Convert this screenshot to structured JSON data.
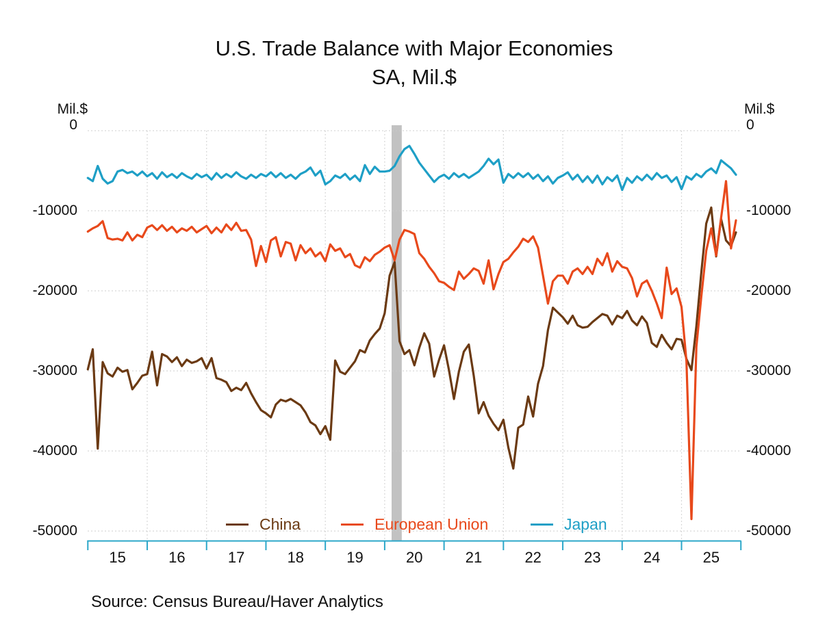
{
  "title": {
    "line1": "U.S. Trade Balance with Major Economies",
    "line2": "SA, Mil.$"
  },
  "unit_label_left": "Mil.$",
  "unit_label_right": "Mil.$",
  "source": "Source:  Census Bureau/Haver Analytics",
  "legend": [
    {
      "label": "China",
      "color": "#6B3A13"
    },
    {
      "label": "European Union",
      "color": "#E8491B"
    },
    {
      "label": "Japan",
      "color": "#1E9FC6"
    }
  ],
  "chart_data": {
    "type": "line",
    "title": "U.S. Trade Balance with Major Economies",
    "subtitle": "SA, Mil.$",
    "ylabel": "Mil.$",
    "xlabel": "",
    "grid": "dotted",
    "legend_position": "bottom-inside",
    "ylim": [
      -50000,
      0
    ],
    "xlim": [
      "2015-01",
      "2026-01"
    ],
    "y_ticks": [
      0,
      -10000,
      -20000,
      -30000,
      -40000,
      -50000
    ],
    "x_tick_years": [
      2015,
      2016,
      2017,
      2018,
      2019,
      2020,
      2021,
      2022,
      2023,
      2024,
      2025,
      2026
    ],
    "x_tick_labels": [
      "15",
      "16",
      "17",
      "18",
      "19",
      "20",
      "21",
      "22",
      "23",
      "24",
      "25"
    ],
    "recession_band": {
      "from": "2020-02",
      "to": "2020-04",
      "color": "#C2C2C2"
    },
    "axis_color": "#2BA7C9",
    "grid_color": "#CBCBCB",
    "x": [
      "2015-01",
      "2015-02",
      "2015-03",
      "2015-04",
      "2015-05",
      "2015-06",
      "2015-07",
      "2015-08",
      "2015-09",
      "2015-10",
      "2015-11",
      "2015-12",
      "2016-01",
      "2016-02",
      "2016-03",
      "2016-04",
      "2016-05",
      "2016-06",
      "2016-07",
      "2016-08",
      "2016-09",
      "2016-10",
      "2016-11",
      "2016-12",
      "2017-01",
      "2017-02",
      "2017-03",
      "2017-04",
      "2017-05",
      "2017-06",
      "2017-07",
      "2017-08",
      "2017-09",
      "2017-10",
      "2017-11",
      "2017-12",
      "2018-01",
      "2018-02",
      "2018-03",
      "2018-04",
      "2018-05",
      "2018-06",
      "2018-07",
      "2018-08",
      "2018-09",
      "2018-10",
      "2018-11",
      "2018-12",
      "2019-01",
      "2019-02",
      "2019-03",
      "2019-04",
      "2019-05",
      "2019-06",
      "2019-07",
      "2019-08",
      "2019-09",
      "2019-10",
      "2019-11",
      "2019-12",
      "2020-01",
      "2020-02",
      "2020-03",
      "2020-04",
      "2020-05",
      "2020-06",
      "2020-07",
      "2020-08",
      "2020-09",
      "2020-10",
      "2020-11",
      "2020-12",
      "2021-01",
      "2021-02",
      "2021-03",
      "2021-04",
      "2021-05",
      "2021-06",
      "2021-07",
      "2021-08",
      "2021-09",
      "2021-10",
      "2021-11",
      "2021-12",
      "2022-01",
      "2022-02",
      "2022-03",
      "2022-04",
      "2022-05",
      "2022-06",
      "2022-07",
      "2022-08",
      "2022-09",
      "2022-10",
      "2022-11",
      "2022-12",
      "2023-01",
      "2023-02",
      "2023-03",
      "2023-04",
      "2023-05",
      "2023-06",
      "2023-07",
      "2023-08",
      "2023-09",
      "2023-10",
      "2023-11",
      "2023-12",
      "2024-01",
      "2024-02",
      "2024-03",
      "2024-04",
      "2024-05",
      "2024-06",
      "2024-07",
      "2024-08",
      "2024-09",
      "2024-10",
      "2024-11",
      "2024-12",
      "2025-01",
      "2025-02",
      "2025-03",
      "2025-04",
      "2025-05",
      "2025-06",
      "2025-07",
      "2025-08",
      "2025-09",
      "2025-10",
      "2025-11",
      "2025-12"
    ],
    "series": [
      {
        "name": "China",
        "color": "#6B3A13",
        "values": [
          -29800,
          -27300,
          -39700,
          -28900,
          -30300,
          -30700,
          -29600,
          -30100,
          -29900,
          -32300,
          -31500,
          -30600,
          -30400,
          -27600,
          -31800,
          -27900,
          -28200,
          -28900,
          -28300,
          -29400,
          -28600,
          -29000,
          -28800,
          -28400,
          -29700,
          -28400,
          -30900,
          -31100,
          -31400,
          -32500,
          -32100,
          -32400,
          -31500,
          -32800,
          -33900,
          -34900,
          -35300,
          -35800,
          -34200,
          -33600,
          -33800,
          -33500,
          -33900,
          -34300,
          -35200,
          -36400,
          -36800,
          -37900,
          -36900,
          -38600,
          -28700,
          -30100,
          -30400,
          -29600,
          -28800,
          -27400,
          -27700,
          -26200,
          -25400,
          -24700,
          -22800,
          -18100,
          -16400,
          -26300,
          -27900,
          -27400,
          -29300,
          -27100,
          -25300,
          -26600,
          -30700,
          -28600,
          -26800,
          -29900,
          -33500,
          -30100,
          -27600,
          -26700,
          -30600,
          -35300,
          -33900,
          -35600,
          -36600,
          -37400,
          -36100,
          -39600,
          -42200,
          -37100,
          -36700,
          -33200,
          -35700,
          -31600,
          -29400,
          -24900,
          -22100,
          -22700,
          -23300,
          -24100,
          -23100,
          -24300,
          -24600,
          -24500,
          -23900,
          -23400,
          -22900,
          -23100,
          -24200,
          -23100,
          -23400,
          -22500,
          -23700,
          -24300,
          -23200,
          -24000,
          -26500,
          -27000,
          -25500,
          -26500,
          -27300,
          -26000,
          -26100,
          -28500,
          -29900,
          -24400,
          -17700,
          -11600,
          -9600,
          -15700,
          -11000,
          -13700,
          -14400,
          -12700
        ]
      },
      {
        "name": "European Union",
        "color": "#E8491B",
        "values": [
          -12600,
          -12200,
          -11900,
          -11300,
          -13400,
          -13600,
          -13500,
          -13700,
          -12700,
          -13700,
          -13000,
          -13300,
          -12100,
          -11800,
          -12400,
          -11800,
          -12500,
          -12000,
          -12700,
          -12200,
          -12500,
          -12000,
          -12700,
          -12300,
          -11900,
          -12800,
          -12100,
          -12700,
          -11700,
          -12400,
          -11500,
          -12500,
          -12400,
          -13600,
          -16900,
          -14400,
          -16400,
          -13700,
          -13300,
          -15700,
          -13900,
          -14100,
          -16200,
          -14300,
          -15300,
          -14700,
          -15700,
          -15200,
          -16300,
          -14200,
          -15000,
          -14700,
          -15800,
          -15400,
          -16800,
          -17100,
          -15800,
          -16300,
          -15500,
          -15100,
          -14600,
          -14300,
          -16200,
          -13600,
          -12400,
          -12600,
          -12900,
          -15300,
          -16000,
          -17000,
          -17800,
          -18800,
          -19000,
          -19500,
          -19900,
          -17600,
          -18500,
          -17900,
          -17200,
          -17500,
          -19100,
          -16200,
          -19800,
          -17900,
          -16400,
          -16000,
          -15200,
          -14500,
          -13500,
          -13900,
          -13200,
          -14600,
          -18100,
          -21600,
          -18800,
          -18100,
          -18100,
          -19100,
          -17600,
          -17200,
          -17900,
          -17000,
          -17900,
          -16000,
          -16800,
          -15300,
          -17600,
          -16300,
          -17000,
          -17200,
          -18400,
          -20700,
          -19100,
          -18700,
          -20000,
          -21600,
          -23400,
          -17100,
          -20400,
          -19700,
          -22000,
          -28800,
          -48500,
          -27000,
          -20700,
          -15000,
          -12200,
          -15600,
          -10900,
          -6300,
          -14700,
          -11200
        ]
      },
      {
        "name": "Japan",
        "color": "#1E9FC6",
        "values": [
          -5900,
          -6300,
          -4400,
          -6000,
          -6600,
          -6300,
          -5100,
          -4900,
          -5300,
          -5100,
          -5600,
          -5100,
          -5700,
          -5300,
          -6000,
          -5200,
          -5800,
          -5400,
          -5900,
          -5300,
          -5700,
          -6000,
          -5400,
          -5800,
          -5500,
          -6100,
          -5300,
          -5900,
          -5400,
          -5800,
          -5200,
          -5700,
          -6000,
          -5500,
          -5900,
          -5400,
          -5700,
          -5200,
          -5800,
          -5300,
          -5900,
          -5500,
          -6000,
          -5400,
          -5100,
          -4600,
          -5600,
          -5000,
          -6700,
          -6300,
          -5600,
          -5900,
          -5400,
          -6100,
          -5600,
          -6300,
          -4300,
          -5400,
          -4500,
          -5100,
          -5100,
          -5000,
          -4400,
          -3200,
          -2300,
          -1900,
          -2900,
          -4000,
          -4800,
          -5600,
          -6400,
          -5800,
          -5500,
          -6000,
          -5300,
          -5800,
          -5400,
          -5900,
          -5500,
          -5100,
          -4400,
          -3500,
          -4200,
          -3600,
          -6500,
          -5400,
          -5900,
          -5300,
          -5800,
          -5300,
          -6000,
          -5500,
          -6300,
          -5700,
          -6600,
          -5900,
          -5600,
          -5200,
          -6100,
          -5500,
          -6400,
          -5700,
          -6500,
          -5600,
          -6700,
          -5800,
          -6300,
          -5600,
          -7400,
          -5900,
          -6500,
          -5700,
          -6200,
          -5500,
          -6100,
          -5300,
          -5900,
          -5600,
          -6400,
          -5800,
          -7300,
          -5700,
          -6100,
          -5400,
          -5800,
          -5100,
          -4700,
          -5300,
          -3700,
          -4200,
          -4700,
          -5500
        ]
      }
    ]
  }
}
